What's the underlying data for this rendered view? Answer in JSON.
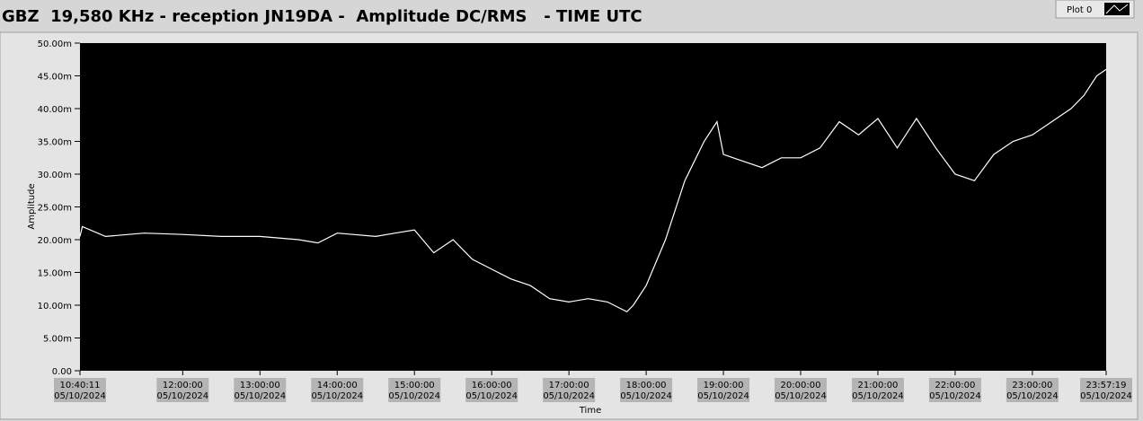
{
  "chart_data": {
    "type": "line",
    "title": "GBZ  19,580 KHz - reception JN19DA -  Amplitude DC/RMS   - TIME UTC",
    "x_label": "Time",
    "y_label": "Amplitude",
    "x": [
      "05/10/2024 10:40:11",
      "05/10/2024 10:42:00",
      "05/10/2024 11:00:00",
      "05/10/2024 11:30:00",
      "05/10/2024 12:00:00",
      "05/10/2024 12:30:00",
      "05/10/2024 13:00:00",
      "05/10/2024 13:30:00",
      "05/10/2024 13:45:00",
      "05/10/2024 14:00:00",
      "05/10/2024 14:30:00",
      "05/10/2024 14:45:00",
      "05/10/2024 15:00:00",
      "05/10/2024 15:15:00",
      "05/10/2024 15:30:00",
      "05/10/2024 15:45:00",
      "05/10/2024 16:00:00",
      "05/10/2024 16:15:00",
      "05/10/2024 16:30:00",
      "05/10/2024 16:45:00",
      "05/10/2024 17:00:00",
      "05/10/2024 17:15:00",
      "05/10/2024 17:30:00",
      "05/10/2024 17:45:00",
      "05/10/2024 17:50:00",
      "05/10/2024 18:00:00",
      "05/10/2024 18:15:00",
      "05/10/2024 18:30:00",
      "05/10/2024 18:45:00",
      "05/10/2024 18:55:00",
      "05/10/2024 19:00:00",
      "05/10/2024 19:15:00",
      "05/10/2024 19:30:00",
      "05/10/2024 19:45:00",
      "05/10/2024 20:00:00",
      "05/10/2024 20:15:00",
      "05/10/2024 20:30:00",
      "05/10/2024 20:45:00",
      "05/10/2024 21:00:00",
      "05/10/2024 21:15:00",
      "05/10/2024 21:30:00",
      "05/10/2024 21:45:00",
      "05/10/2024 22:00:00",
      "05/10/2024 22:15:00",
      "05/10/2024 22:30:00",
      "05/10/2024 22:45:00",
      "05/10/2024 23:00:00",
      "05/10/2024 23:15:00",
      "05/10/2024 23:30:00",
      "05/10/2024 23:40:00",
      "05/10/2024 23:50:00",
      "05/10/2024 23:57:19"
    ],
    "series": [
      {
        "name": "Plot 0",
        "color": "#ffffff",
        "values": [
          0.0205,
          0.022,
          0.0205,
          0.021,
          0.0208,
          0.0205,
          0.0205,
          0.02,
          0.0195,
          0.021,
          0.0205,
          0.021,
          0.0215,
          0.018,
          0.02,
          0.017,
          0.0155,
          0.014,
          0.013,
          0.011,
          0.0105,
          0.011,
          0.0105,
          0.009,
          0.01,
          0.013,
          0.02,
          0.029,
          0.035,
          0.038,
          0.033,
          0.032,
          0.031,
          0.0325,
          0.0325,
          0.034,
          0.038,
          0.036,
          0.0385,
          0.034,
          0.0385,
          0.034,
          0.03,
          0.029,
          0.033,
          0.035,
          0.036,
          0.038,
          0.04,
          0.042,
          0.045,
          0.046
        ]
      }
    ],
    "xlim": [
      "05/10/2024 10:40:11",
      "05/10/2024 23:57:19"
    ],
    "xticks": [
      {
        "value": "05/10/2024 10:40:11",
        "label": [
          "10:40:11",
          "05/10/2024"
        ]
      },
      {
        "value": "05/10/2024 12:00:00",
        "label": [
          "12:00:00",
          "05/10/2024"
        ]
      },
      {
        "value": "05/10/2024 13:00:00",
        "label": [
          "13:00:00",
          "05/10/2024"
        ]
      },
      {
        "value": "05/10/2024 14:00:00",
        "label": [
          "14:00:00",
          "05/10/2024"
        ]
      },
      {
        "value": "05/10/2024 15:00:00",
        "label": [
          "15:00:00",
          "05/10/2024"
        ]
      },
      {
        "value": "05/10/2024 16:00:00",
        "label": [
          "16:00:00",
          "05/10/2024"
        ]
      },
      {
        "value": "05/10/2024 17:00:00",
        "label": [
          "17:00:00",
          "05/10/2024"
        ]
      },
      {
        "value": "05/10/2024 18:00:00",
        "label": [
          "18:00:00",
          "05/10/2024"
        ]
      },
      {
        "value": "05/10/2024 19:00:00",
        "label": [
          "19:00:00",
          "05/10/2024"
        ]
      },
      {
        "value": "05/10/2024 20:00:00",
        "label": [
          "20:00:00",
          "05/10/2024"
        ]
      },
      {
        "value": "05/10/2024 21:00:00",
        "label": [
          "21:00:00",
          "05/10/2024"
        ]
      },
      {
        "value": "05/10/2024 22:00:00",
        "label": [
          "22:00:00",
          "05/10/2024"
        ]
      },
      {
        "value": "05/10/2024 23:00:00",
        "label": [
          "23:00:00",
          "05/10/2024"
        ]
      },
      {
        "value": "05/10/2024 23:57:19",
        "label": [
          "23:57:19",
          "05/10/2024"
        ]
      }
    ],
    "ylim": [
      0,
      0.05
    ],
    "yticks": [
      {
        "value": 0,
        "label": "0.00"
      },
      {
        "value": 0.005,
        "label": "5.00m"
      },
      {
        "value": 0.01,
        "label": "10.00m"
      },
      {
        "value": 0.015,
        "label": "15.00m"
      },
      {
        "value": 0.02,
        "label": "20.00m"
      },
      {
        "value": 0.025,
        "label": "25.00m"
      },
      {
        "value": 0.03,
        "label": "30.00m"
      },
      {
        "value": 0.035,
        "label": "35.00m"
      },
      {
        "value": 0.04,
        "label": "40.00m"
      },
      {
        "value": 0.045,
        "label": "45.00m"
      },
      {
        "value": 0.05,
        "label": "50.00m"
      }
    ],
    "grid": false
  }
}
